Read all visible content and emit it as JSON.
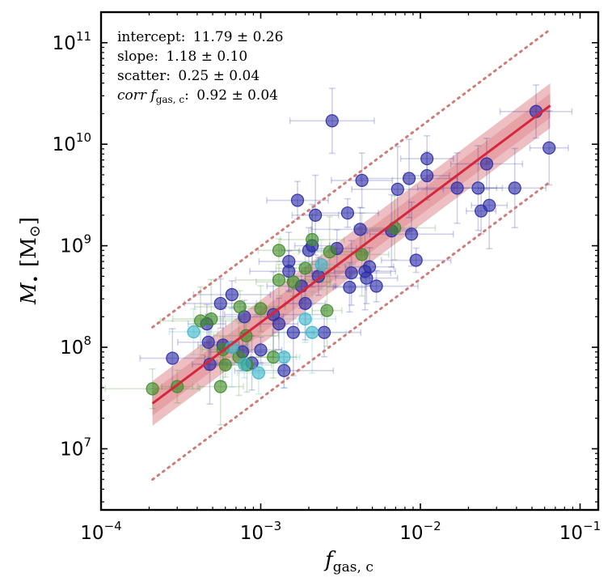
{
  "chart_data": {
    "type": "scatter",
    "xscale": "log",
    "yscale": "log",
    "xlim": [
      0.0001,
      0.13
    ],
    "ylim": [
      2500000,
      200000000000
    ],
    "xlabel": {
      "main": "f",
      "sub": "gas, c"
    },
    "ylabel": {
      "main": "M",
      "bullet": "•",
      "unit": "[M",
      "sun": "⊙",
      "close": "]"
    },
    "xticks": [
      {
        "value": 0.0001,
        "base": "10",
        "exp": "−4"
      },
      {
        "value": 0.001,
        "base": "10",
        "exp": "−3"
      },
      {
        "value": 0.01,
        "base": "10",
        "exp": "−2"
      },
      {
        "value": 0.1,
        "base": "10",
        "exp": "−1"
      }
    ],
    "yticks": [
      {
        "value": 10000000,
        "base": "10",
        "exp": "7"
      },
      {
        "value": 100000000,
        "base": "10",
        "exp": "8"
      },
      {
        "value": 1000000000,
        "base": "10",
        "exp": "9"
      },
      {
        "value": 10000000000,
        "base": "10",
        "exp": "10"
      },
      {
        "value": 100000000000,
        "base": "10",
        "exp": "11"
      }
    ],
    "annotations": [
      {
        "label": "intercept",
        "value": "11.79 ± 0.26"
      },
      {
        "label": "slope",
        "value": "1.18 ± 0.10"
      },
      {
        "label": "scatter",
        "value": "0.25 ± 0.04"
      },
      {
        "label": "corr f",
        "sub": "gas, c",
        "value": "0.92 ± 0.04"
      }
    ],
    "fit": {
      "slope": 1.18,
      "x_range": [
        0.00021,
        0.065
      ],
      "y_at_x_range": [
        28000000,
        24000000000
      ],
      "scatter_dex": 0.25,
      "intercept_band_dex": 0.12,
      "outer_band_dex": 0.22,
      "color": "#d6263c",
      "band_color": "#e08a8f",
      "scatter_line_color": "#cd7c78"
    },
    "series": [
      {
        "name": "blue",
        "color": "#2a2aa6",
        "points": [
          {
            "x": 0.00028,
            "y": 78000000
          },
          {
            "x": 0.00046,
            "y": 170000000
          },
          {
            "x": 0.00047,
            "y": 112000000
          },
          {
            "x": 0.00048,
            "y": 68000000
          },
          {
            "x": 0.00056,
            "y": 270000000
          },
          {
            "x": 0.00058,
            "y": 105000000
          },
          {
            "x": 0.00066,
            "y": 330000000
          },
          {
            "x": 0.00077,
            "y": 90000000
          },
          {
            "x": 0.00079,
            "y": 200000000
          },
          {
            "x": 0.00088,
            "y": 70000000
          },
          {
            "x": 0.001,
            "y": 94000000
          },
          {
            "x": 0.0012,
            "y": 210000000
          },
          {
            "x": 0.0013,
            "y": 170000000
          },
          {
            "x": 0.0014,
            "y": 59000000
          },
          {
            "x": 0.0015,
            "y": 700000000
          },
          {
            "x": 0.0015,
            "y": 560000000
          },
          {
            "x": 0.0016,
            "y": 140000000
          },
          {
            "x": 0.0017,
            "y": 2800000000
          },
          {
            "x": 0.0018,
            "y": 400000000
          },
          {
            "x": 0.0019,
            "y": 270000000
          },
          {
            "x": 0.002,
            "y": 900000000
          },
          {
            "x": 0.0021,
            "y": 1000000000
          },
          {
            "x": 0.0022,
            "y": 2000000000
          },
          {
            "x": 0.0023,
            "y": 500000000
          },
          {
            "x": 0.0025,
            "y": 140000000
          },
          {
            "x": 0.0028,
            "y": 17000000000
          },
          {
            "x": 0.003,
            "y": 940000000
          },
          {
            "x": 0.0035,
            "y": 2100000000
          },
          {
            "x": 0.0036,
            "y": 390000000
          },
          {
            "x": 0.0037,
            "y": 540000000
          },
          {
            "x": 0.0042,
            "y": 1450000000
          },
          {
            "x": 0.0043,
            "y": 4400000000
          },
          {
            "x": 0.0045,
            "y": 560000000
          },
          {
            "x": 0.0046,
            "y": 480000000
          },
          {
            "x": 0.0048,
            "y": 620000000
          },
          {
            "x": 0.0053,
            "y": 400000000
          },
          {
            "x": 0.0066,
            "y": 1400000000
          },
          {
            "x": 0.0072,
            "y": 3600000000
          },
          {
            "x": 0.0085,
            "y": 4600000000
          },
          {
            "x": 0.0088,
            "y": 1300000000
          },
          {
            "x": 0.0094,
            "y": 720000000
          },
          {
            "x": 0.011,
            "y": 7200000000
          },
          {
            "x": 0.011,
            "y": 4900000000
          },
          {
            "x": 0.017,
            "y": 3700000000
          },
          {
            "x": 0.023,
            "y": 3700000000
          },
          {
            "x": 0.024,
            "y": 2200000000
          },
          {
            "x": 0.026,
            "y": 6400000000
          },
          {
            "x": 0.027,
            "y": 2500000000
          },
          {
            "x": 0.039,
            "y": 3700000000
          },
          {
            "x": 0.053,
            "y": 21000000000
          },
          {
            "x": 0.064,
            "y": 9200000000
          }
        ]
      },
      {
        "name": "green",
        "color": "#3d8c25",
        "points": [
          {
            "x": 0.00021,
            "y": 39000000
          },
          {
            "x": 0.0003,
            "y": 41000000
          },
          {
            "x": 0.00042,
            "y": 182000000
          },
          {
            "x": 0.00049,
            "y": 190000000
          },
          {
            "x": 0.00056,
            "y": 41000000
          },
          {
            "x": 0.00058,
            "y": 95000000
          },
          {
            "x": 0.0006,
            "y": 67000000
          },
          {
            "x": 0.00073,
            "y": 80000000
          },
          {
            "x": 0.00074,
            "y": 250000000
          },
          {
            "x": 0.00081,
            "y": 130000000
          },
          {
            "x": 0.00082,
            "y": 67000000
          },
          {
            "x": 0.001,
            "y": 240000000
          },
          {
            "x": 0.0012,
            "y": 80000000
          },
          {
            "x": 0.0013,
            "y": 460000000
          },
          {
            "x": 0.0013,
            "y": 900000000
          },
          {
            "x": 0.0016,
            "y": 440000000
          },
          {
            "x": 0.0019,
            "y": 600000000
          },
          {
            "x": 0.0021,
            "y": 1150000000
          },
          {
            "x": 0.0026,
            "y": 230000000
          },
          {
            "x": 0.0027,
            "y": 870000000
          },
          {
            "x": 0.0043,
            "y": 820000000
          },
          {
            "x": 0.0069,
            "y": 1500000000
          }
        ]
      },
      {
        "name": "cyan",
        "color": "#3ab5c8",
        "points": [
          {
            "x": 0.00038,
            "y": 142000000
          },
          {
            "x": 0.00066,
            "y": 100000000
          },
          {
            "x": 0.00079,
            "y": 68000000
          },
          {
            "x": 0.00097,
            "y": 56000000
          },
          {
            "x": 0.0014,
            "y": 80000000
          },
          {
            "x": 0.0019,
            "y": 190000000
          },
          {
            "x": 0.0021,
            "y": 140000000
          },
          {
            "x": 0.0024,
            "y": 650000000
          }
        ]
      }
    ]
  }
}
